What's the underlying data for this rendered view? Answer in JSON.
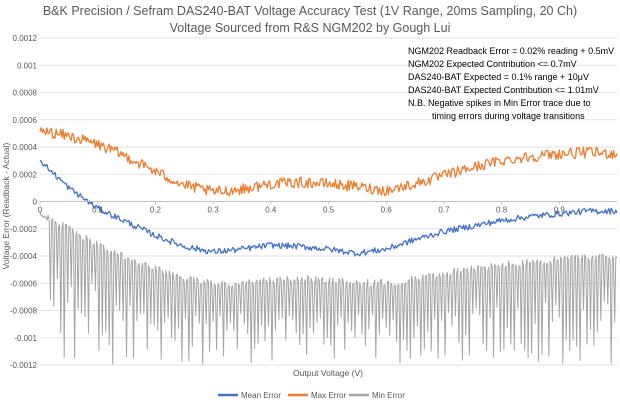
{
  "chart_data": {
    "type": "line",
    "title": "B&K Precision / Sefram DAS240-BAT Voltage Accuracy Test (1V Range, 20ms Sampling, 20 Ch)",
    "subtitle": "Voltage Sourced from R&S NGM202 by Gough Lui",
    "xlabel": "Output Voltage (V)",
    "ylabel": "Voltage Error (Readback - Actual)",
    "xlim": [
      0,
      1.0
    ],
    "ylim": [
      -0.0012,
      0.0012
    ],
    "x_ticks": [
      0,
      0.1,
      0.2,
      0.3,
      0.4,
      0.5,
      0.6,
      0.7,
      0.8,
      0.9
    ],
    "x_tick_labels": [
      "0",
      "0.1",
      "0.2",
      "0.3",
      "0.4",
      "0.5",
      "0.6",
      "0.7",
      "0.8",
      "0.9"
    ],
    "y_ticks": [
      0.0012,
      0.001,
      0.0008,
      0.0006,
      0.0004,
      0.0002,
      0,
      -0.0002,
      -0.0004,
      -0.0006,
      -0.0008,
      -0.001,
      -0.0012
    ],
    "y_tick_labels": [
      "0.0012",
      "0.001",
      "0.0008",
      "0.0006",
      "0.0004",
      "0.0002",
      "0",
      "-0.0002",
      "-0.0004",
      "-0.0006",
      "-0.0008",
      "-0.001",
      "-0.0012"
    ],
    "grid": "horizontal",
    "legend_position": "bottom",
    "annotations": [
      "NGM202 Readback Error = 0.02% reading + 0.5mV",
      "NGM202 Expected Contribution <= 0.7mV",
      "DAS240-BAT Expected = 0.1% range + 10μV",
      "DAS240-BAT Expected Contribution <= 1.01mV",
      "N.B. Negative spikes in Min Error trace due to",
      "timing errors during voltage transitions"
    ],
    "series": [
      {
        "name": "Mean Error",
        "color": "#4472C4",
        "x": [
          0,
          0.05,
          0.1,
          0.15,
          0.2,
          0.25,
          0.3,
          0.35,
          0.4,
          0.45,
          0.5,
          0.55,
          0.6,
          0.65,
          0.7,
          0.75,
          0.8,
          0.85,
          0.9,
          0.95,
          1.0
        ],
        "values": [
          0.0003,
          0.0001,
          -5e-05,
          -0.00015,
          -0.00025,
          -0.00033,
          -0.00037,
          -0.00035,
          -0.00032,
          -0.00033,
          -0.00035,
          -0.00038,
          -0.00035,
          -0.00028,
          -0.00022,
          -0.00018,
          -0.00014,
          -0.00011,
          -9e-05,
          -7e-05,
          -7e-05
        ]
      },
      {
        "name": "Max Error",
        "color": "#ED7D31",
        "x": [
          0,
          0.05,
          0.1,
          0.15,
          0.2,
          0.25,
          0.3,
          0.35,
          0.4,
          0.45,
          0.5,
          0.55,
          0.6,
          0.65,
          0.7,
          0.75,
          0.8,
          0.85,
          0.9,
          0.95,
          1.0
        ],
        "values": [
          0.00052,
          0.00048,
          0.00042,
          0.00033,
          0.00022,
          0.00012,
          7e-05,
          9e-05,
          0.00013,
          0.00014,
          0.00013,
          0.00011,
          8e-05,
          0.00013,
          0.00019,
          0.00025,
          0.0003,
          0.00033,
          0.00035,
          0.00036,
          0.00035
        ]
      },
      {
        "name": "Min Error",
        "color": "#A5A5A5",
        "x": [
          0,
          0.05,
          0.1,
          0.15,
          0.2,
          0.25,
          0.3,
          0.35,
          0.4,
          0.45,
          0.5,
          0.55,
          0.6,
          0.65,
          0.7,
          0.75,
          0.8,
          0.85,
          0.9,
          0.95,
          1.0
        ],
        "values": [
          -0.0001,
          -0.0002,
          -0.00032,
          -0.00042,
          -0.0005,
          -0.00057,
          -0.0006,
          -0.0006,
          -0.00058,
          -0.00057,
          -0.00058,
          -0.0006,
          -0.0006,
          -0.00057,
          -0.00053,
          -0.0005,
          -0.00047,
          -0.00045,
          -0.00043,
          -0.00042,
          -0.00041
        ],
        "spike_floor": -0.0012
      }
    ]
  }
}
